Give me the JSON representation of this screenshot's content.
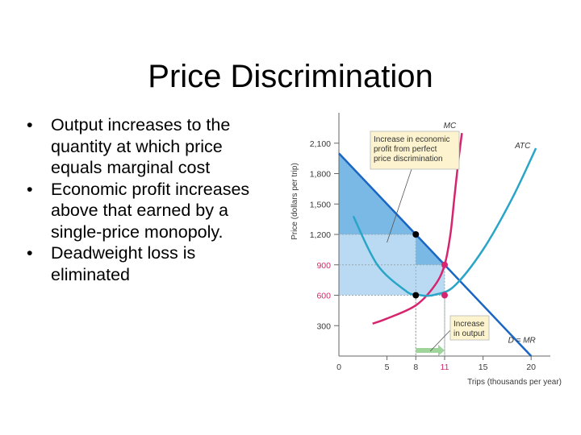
{
  "slide": {
    "title": "Price Discrimination",
    "bullets": [
      "Output increases to the quantity at which price equals marginal cost",
      "Economic profit increases above that earned by a single-price monopoly.",
      "Deadweight loss is eliminated"
    ]
  },
  "chart_data": {
    "type": "line",
    "xlabel": "Trips (thousands per year)",
    "ylabel": "Price (dollars per trip)",
    "xlim": [
      0,
      22
    ],
    "ylim": [
      0,
      2400
    ],
    "x_ticks": [
      0,
      5,
      8,
      11,
      15,
      20
    ],
    "x_tick_labels": [
      "0",
      "5",
      "8",
      "11",
      "15",
      "20"
    ],
    "y_ticks": [
      300,
      600,
      900,
      1200,
      1500,
      1800,
      2100
    ],
    "y_tick_labels": [
      "300",
      "600",
      "900",
      "1,200",
      "1,500",
      "1,800",
      "2,100"
    ],
    "highlight_ticks": {
      "x": [
        11
      ],
      "y": [
        600,
        900
      ]
    },
    "series": [
      {
        "name": "D = MR",
        "x": [
          0,
          20
        ],
        "y": [
          2000,
          0
        ],
        "color": "#1a66c4"
      },
      {
        "name": "MC",
        "x": [
          3.5,
          5,
          8,
          10,
          11,
          11.6,
          12.0,
          12.4,
          12.8
        ],
        "y": [
          320,
          370,
          500,
          700,
          900,
          1200,
          1550,
          1900,
          2200
        ],
        "color": "#d6246e"
      },
      {
        "name": "ATC",
        "x": [
          1.5,
          4,
          7,
          8,
          9,
          10,
          12,
          15,
          18,
          20.5
        ],
        "y": [
          1380,
          900,
          640,
          610,
          595,
          605,
          690,
          1050,
          1550,
          2050
        ],
        "color": "#2aa5c8"
      }
    ],
    "points": [
      {
        "x": 8,
        "y": 1200,
        "color": "#000000"
      },
      {
        "x": 8,
        "y": 600,
        "color": "#000000"
      },
      {
        "x": 11,
        "y": 900,
        "color": "#d6246e"
      },
      {
        "x": 11,
        "y": 600,
        "color": "#d6246e"
      }
    ],
    "shaded_regions": [
      {
        "x": [
          0,
          11,
          11,
          0
        ],
        "y": [
          2000,
          900,
          600,
          600
        ],
        "color": "#b9daf2"
      },
      {
        "x": [
          0,
          8,
          11,
          11,
          8,
          8,
          0
        ],
        "y": [
          2000,
          1200,
          900,
          900,
          900,
          1200,
          1200
        ],
        "color": "#7ab9e6"
      }
    ],
    "annotations": [
      {
        "text": [
          "Increase in economic",
          "profit from perfect",
          "price discrimination"
        ],
        "target": [
          5,
          1200
        ],
        "color": "#fdf4cf"
      },
      {
        "text": [
          "Increase",
          "in output"
        ],
        "target": [
          9.5,
          0
        ],
        "color": "#fdf4cf"
      }
    ],
    "arrow": {
      "from": 8,
      "to": 11,
      "color": "#9fd49a"
    }
  }
}
